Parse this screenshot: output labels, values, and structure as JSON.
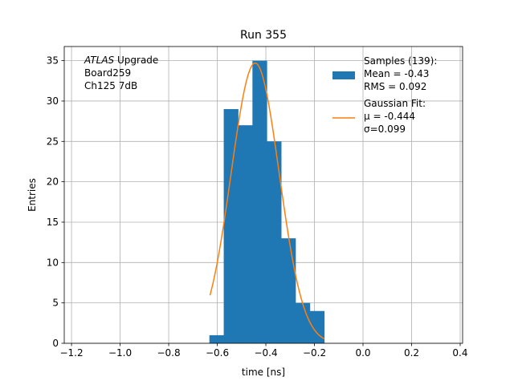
{
  "chart_data": {
    "type": "bar",
    "title": "Run 355",
    "xlabel": "time [ns]",
    "ylabel": "Entries",
    "xlim": [
      -1.23,
      0.41
    ],
    "ylim": [
      0,
      36.75
    ],
    "grid": true,
    "x_ticks": [
      -1.2,
      -1.0,
      -0.8,
      -0.6,
      -0.4,
      -0.2,
      0.0,
      0.2,
      0.4
    ],
    "x_tick_labels": [
      "−1.2",
      "−1.0",
      "−0.8",
      "−0.6",
      "−0.4",
      "−0.2",
      "0.0",
      "0.2",
      "0.4"
    ],
    "y_ticks": [
      0,
      5,
      10,
      15,
      20,
      25,
      30,
      35
    ],
    "y_tick_labels": [
      "0",
      "5",
      "10",
      "15",
      "20",
      "25",
      "30",
      "35"
    ],
    "annotation": {
      "lines": [
        {
          "italic": "ATLAS",
          "rest": " Upgrade"
        },
        {
          "italic": "",
          "rest": " Board259"
        },
        {
          "italic": "",
          "rest": " Ch125 7dB"
        }
      ]
    },
    "histogram": {
      "color": "#1f77b4",
      "bins": [
        {
          "x0": -0.6325,
          "x1": -0.5734,
          "value": 1
        },
        {
          "x0": -0.5734,
          "x1": -0.5143,
          "value": 29
        },
        {
          "x0": -0.5143,
          "x1": -0.4552,
          "value": 27
        },
        {
          "x0": -0.4552,
          "x1": -0.3961,
          "value": 35
        },
        {
          "x0": -0.3961,
          "x1": -0.337,
          "value": 25
        },
        {
          "x0": -0.337,
          "x1": -0.2779,
          "value": 13
        },
        {
          "x0": -0.2779,
          "x1": -0.2188,
          "value": 5
        },
        {
          "x0": -0.2188,
          "x1": -0.1597,
          "value": 4
        }
      ]
    },
    "fit": {
      "color": "#ff7f0e",
      "mu": -0.444,
      "sigma": 0.099,
      "amplitude": 34.7,
      "x_range": [
        -0.63,
        -0.16
      ]
    },
    "legend": {
      "position": "top-right",
      "entries": [
        {
          "kind": "patch",
          "color": "#1f77b4",
          "lines": [
            "Samples (139):",
            " Mean = -0.43",
            " RMS = 0.092"
          ]
        },
        {
          "kind": "line",
          "color": "#ff7f0e",
          "lines": [
            "Gaussian Fit:",
            " μ = -0.444",
            " σ=0.099"
          ]
        }
      ]
    }
  }
}
